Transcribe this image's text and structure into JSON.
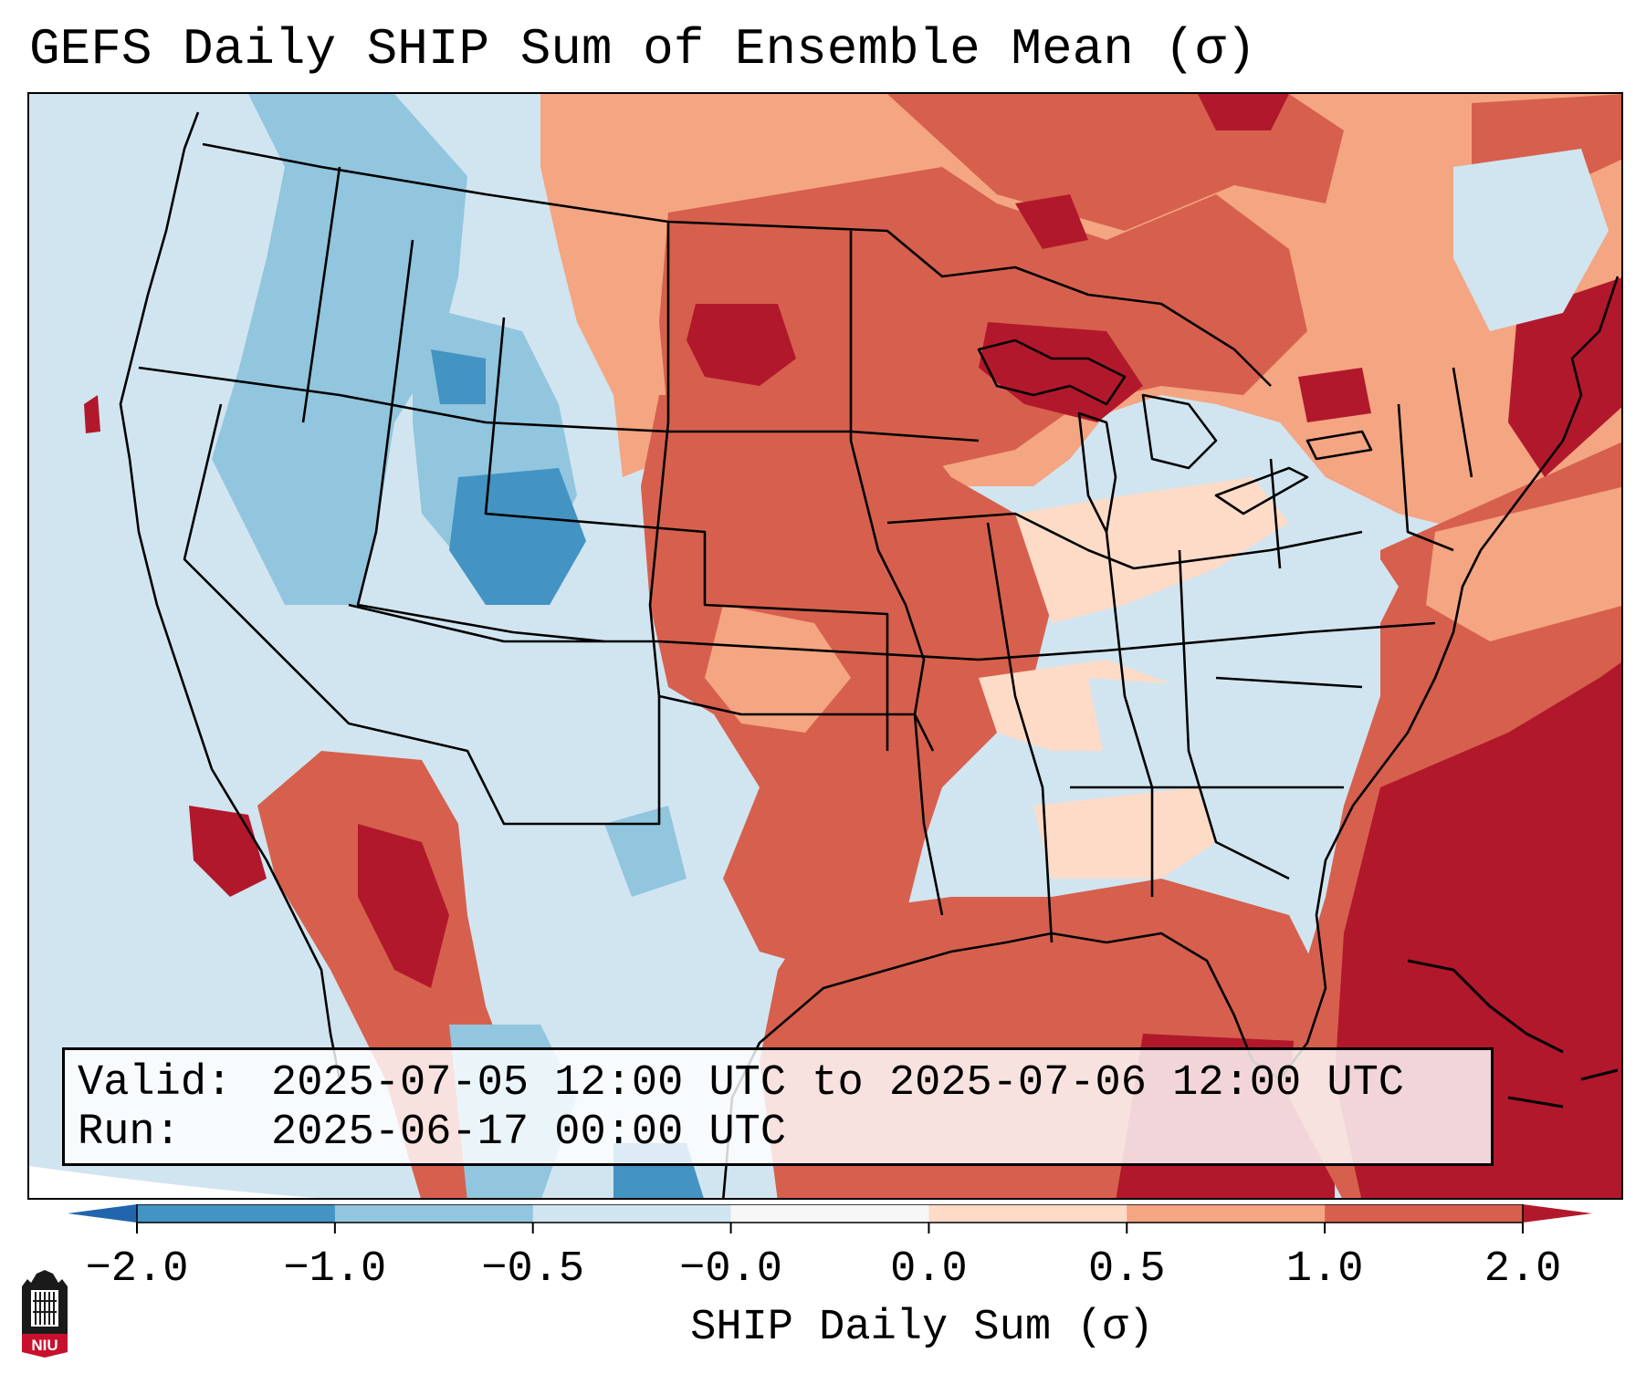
{
  "title": "GEFS Daily SHIP Sum of Ensemble Mean (σ)",
  "info": {
    "valid_label": "Valid:",
    "valid_value": "2025-07-05 12:00 UTC to 2025-07-06 12:00 UTC",
    "run_label": "Run:",
    "run_value": "2025-06-17 00:00 UTC"
  },
  "colorbar": {
    "label": "SHIP Daily Sum (σ)",
    "ticks": [
      "−2.0",
      "−1.0",
      "−0.5",
      "−0.0",
      "0.0",
      "0.5",
      "1.0",
      "2.0"
    ],
    "colors": [
      "#4393c3",
      "#92c5de",
      "#d1e5f0",
      "#f7f7f7",
      "#fddbc7",
      "#f4a582",
      "#d6604d"
    ],
    "extend_low_color": "#2166ac",
    "extend_high_color": "#b2182b"
  },
  "map": {
    "region": "Contiguous United States",
    "ocean_color": "#d1e5f0",
    "border_color": "#000000"
  },
  "logo": {
    "text": "NIU",
    "color": "#c8102e"
  }
}
